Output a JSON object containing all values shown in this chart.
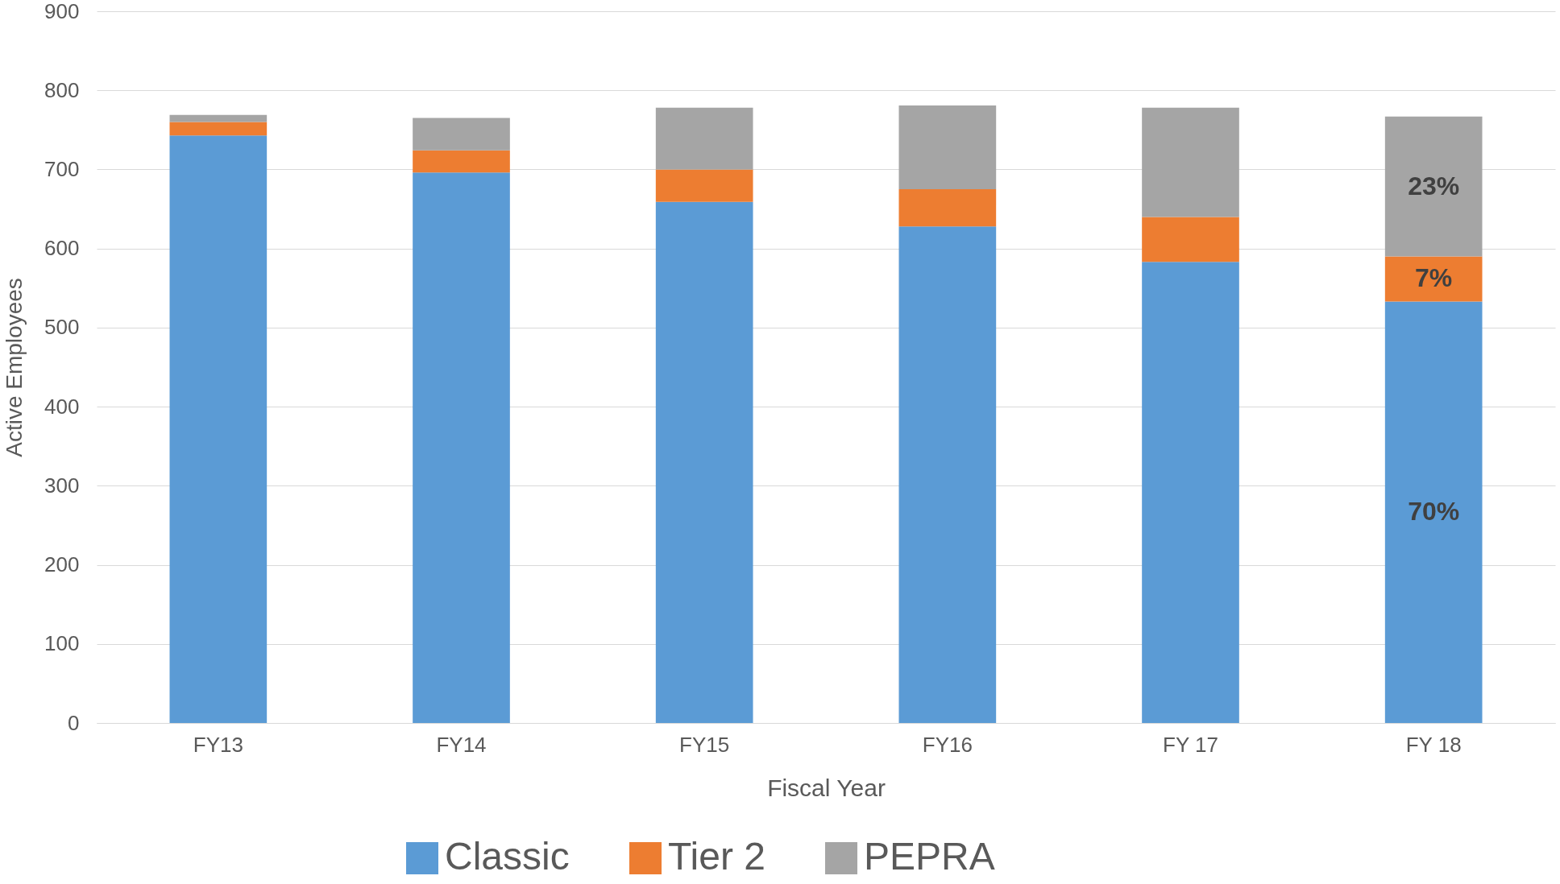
{
  "chart_data": {
    "type": "bar",
    "stacked": true,
    "xlabel": "Fiscal Year",
    "ylabel": "Active Employees",
    "categories": [
      "FY13",
      "FY14",
      "FY15",
      "FY16",
      "FY 17",
      "FY 18"
    ],
    "series": [
      {
        "name": "Classic",
        "color": "#5b9bd5",
        "values": [
          743,
          696,
          659,
          628,
          583,
          533
        ]
      },
      {
        "name": "Tier 2",
        "color": "#ed7d31",
        "values": [
          17,
          28,
          41,
          47,
          57,
          57
        ]
      },
      {
        "name": "PEPRA",
        "color": "#a5a5a5",
        "values": [
          9,
          41,
          78,
          106,
          138,
          177
        ]
      }
    ],
    "annotations": [
      "70%",
      "7%",
      "23%"
    ],
    "ylim": [
      0,
      900
    ],
    "yticks": [
      0,
      100,
      200,
      300,
      400,
      500,
      600,
      700,
      800,
      900
    ],
    "grid": "y",
    "legend": "bottom"
  }
}
